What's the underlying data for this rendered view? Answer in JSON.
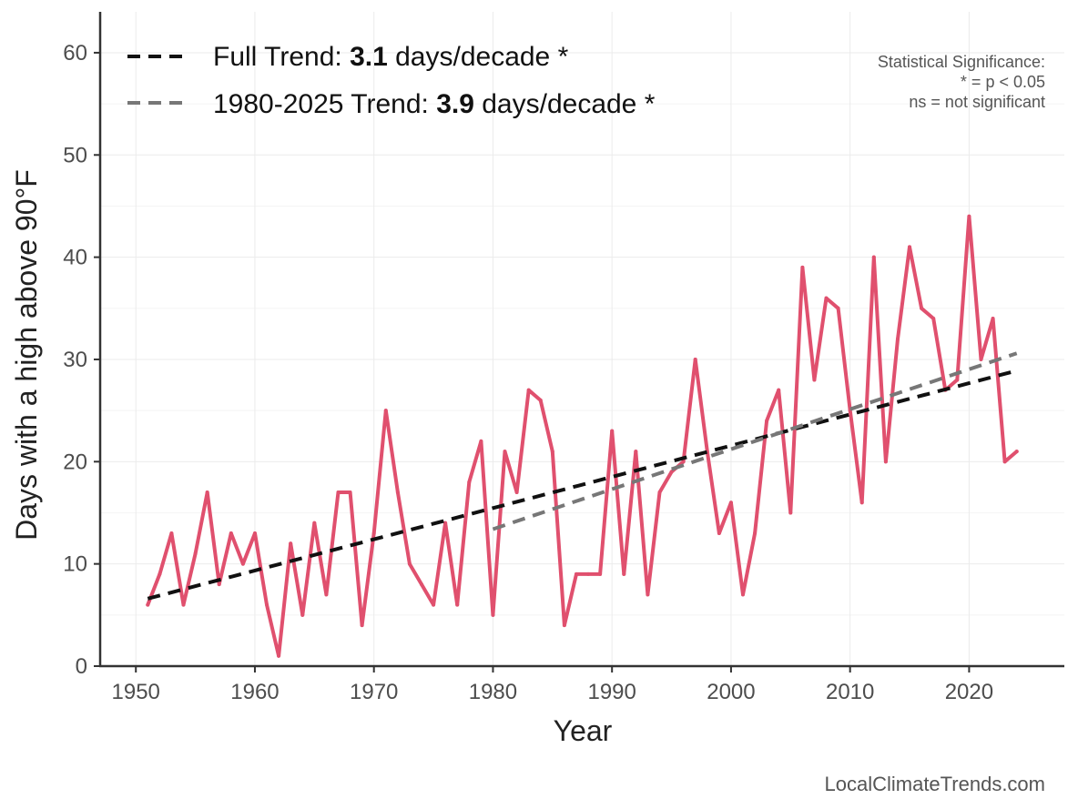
{
  "chart_data": {
    "type": "line",
    "xlabel": "Year",
    "ylabel": "Days with a high above 90°F",
    "xlim": [
      1947,
      2028
    ],
    "ylim": [
      0,
      64
    ],
    "x_ticks": [
      1950,
      1960,
      1970,
      1980,
      1990,
      2000,
      2010,
      2020
    ],
    "y_ticks": [
      0,
      10,
      20,
      30,
      40,
      50,
      60
    ],
    "grid": true,
    "series": [
      {
        "name": "Days above 90°F",
        "color": "#e0506e",
        "x": [
          1951,
          1952,
          1953,
          1954,
          1955,
          1956,
          1957,
          1958,
          1959,
          1960,
          1961,
          1962,
          1963,
          1964,
          1965,
          1966,
          1967,
          1968,
          1969,
          1970,
          1971,
          1972,
          1973,
          1974,
          1975,
          1976,
          1977,
          1978,
          1979,
          1980,
          1981,
          1982,
          1983,
          1984,
          1985,
          1986,
          1987,
          1988,
          1989,
          1990,
          1991,
          1992,
          1993,
          1994,
          1995,
          1996,
          1997,
          1998,
          1999,
          2000,
          2001,
          2002,
          2003,
          2004,
          2005,
          2006,
          2007,
          2008,
          2009,
          2010,
          2011,
          2012,
          2013,
          2014,
          2015,
          2016,
          2017,
          2018,
          2019,
          2020,
          2021,
          2022,
          2023,
          2024
        ],
        "values": [
          6,
          9,
          13,
          6,
          11,
          17,
          8,
          13,
          10,
          13,
          6,
          1,
          12,
          5,
          14,
          7,
          17,
          17,
          4,
          13,
          25,
          17,
          10,
          8,
          6,
          14,
          6,
          18,
          22,
          5,
          21,
          17,
          27,
          26,
          21,
          4,
          9,
          9,
          9,
          23,
          9,
          21,
          7,
          17,
          19,
          20,
          30,
          21,
          13,
          16,
          7,
          13,
          24,
          27,
          15,
          39,
          28,
          36,
          35,
          25,
          16,
          40,
          20,
          32,
          41,
          35,
          34,
          27,
          28,
          44,
          30,
          34,
          20,
          21
        ]
      }
    ],
    "trends": [
      {
        "name": "Full Trend",
        "color": "#111111",
        "x": [
          1951,
          2024
        ],
        "values": [
          6.6,
          28.9
        ]
      },
      {
        "name": "1980-2025 Trend",
        "color": "#777777",
        "x": [
          1980,
          2024
        ],
        "values": [
          13.4,
          30.6
        ]
      }
    ],
    "legend": [
      {
        "prefix": "Full Trend: ",
        "value": "3.1",
        "suffix": " days/decade *",
        "color": "#111111"
      },
      {
        "prefix": "1980-2025 Trend: ",
        "value": "3.9",
        "suffix": " days/decade *",
        "color": "#777777"
      }
    ],
    "significance_note": [
      "Statistical Significance:",
      "* = p < 0.05",
      "ns = not significant"
    ],
    "credit": "LocalClimateTrends.com"
  }
}
